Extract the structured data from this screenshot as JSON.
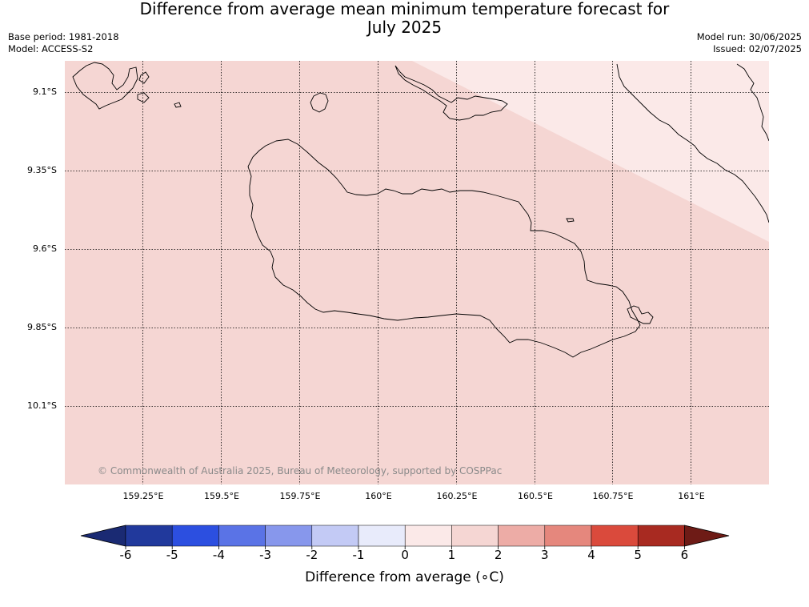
{
  "title_line1": "Difference from average mean minimum temperature forecast for",
  "title_line2": "July 2025",
  "meta": {
    "base_period": "Base period: 1981-2018",
    "model": "Model: ACCESS-S2",
    "model_run": "Model run: 30/06/2025",
    "issued": "Issued: 02/07/2025"
  },
  "copyright": "© Commonwealth of Australia 2025, Bureau of Meteorology, supported by COSPPac",
  "lat_labels": [
    "9.1°S",
    "9.35°S",
    "9.6°S",
    "9.85°S",
    "10.1°S"
  ],
  "lon_labels": [
    "159.25°E",
    "159.5°E",
    "159.75°E",
    "160°E",
    "160.25°E",
    "160.5°E",
    "160.75°E",
    "161°E"
  ],
  "colorbar": {
    "label": "Difference from average (∘C)",
    "ticks": [
      "-6",
      "-5",
      "-4",
      "-3",
      "-2",
      "-1",
      "0",
      "1",
      "2",
      "3",
      "4",
      "5",
      "6"
    ],
    "bin_colors": [
      "#21399c",
      "#2c4fe0",
      "#5a73e6",
      "#8797ec",
      "#c3caf5",
      "#e8ebfb",
      "#fbe9e8",
      "#f5d6d3",
      "#edaca6",
      "#e5877d",
      "#da4a3c",
      "#a82a21"
    ],
    "under_color": "#1a2a73",
    "over_color": "#6e1b16"
  },
  "chart_data": {
    "type": "map",
    "title": "Difference from average mean minimum temperature forecast for July 2025",
    "units": "°C",
    "lon_range": [
      159.0,
      161.25
    ],
    "lat_range": [
      -10.35,
      -9.0
    ],
    "shaded_regions": [
      {
        "anomaly_bin": "1 to 2",
        "color": "#f5d6d3",
        "extent": "most of map"
      },
      {
        "anomaly_bin": "0 to 1",
        "color": "#fbe9e8",
        "extent": "north-east corner"
      }
    ],
    "colorbar_bounds": [
      -6,
      -5,
      -4,
      -3,
      -2,
      -1,
      0,
      1,
      2,
      3,
      4,
      5,
      6
    ],
    "grid": true
  }
}
